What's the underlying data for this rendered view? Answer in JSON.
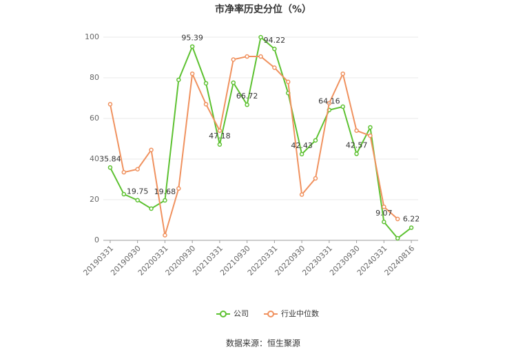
{
  "chart_data": {
    "type": "line",
    "title": "市净率历史分位（%）",
    "source": "数据来源：恒生聚源",
    "categories": [
      "20190331",
      null,
      "20190930",
      null,
      "20200331",
      null,
      "20200930",
      null,
      "20210331",
      null,
      "20210930",
      null,
      "20220331",
      null,
      "20220930",
      null,
      "20230331",
      null,
      "20230930",
      null,
      "20240331",
      null,
      "20240816"
    ],
    "series": [
      {
        "name": "公司",
        "color": "#5cc130",
        "values": [
          35.84,
          22.7,
          19.75,
          15.6,
          19.68,
          79,
          95.39,
          77.3,
          47.18,
          77.6,
          66.72,
          100,
          94.22,
          72.5,
          42.43,
          49.2,
          64.16,
          65.8,
          42.57,
          55.6,
          9.07,
          1,
          6.22
        ]
      },
      {
        "name": "行业中位数",
        "color": "#f0915e",
        "values": [
          67,
          33.5,
          35,
          44.5,
          2.5,
          25.5,
          82,
          67,
          54,
          89,
          90.5,
          90.5,
          85,
          78,
          22.5,
          30.5,
          67.5,
          82,
          54,
          51.5,
          16.5,
          10.5,
          null
        ]
      }
    ],
    "ylim": [
      0,
      100
    ],
    "yticks": [
      0,
      20,
      40,
      60,
      80,
      100
    ],
    "grid": true,
    "legend": "bottom"
  }
}
